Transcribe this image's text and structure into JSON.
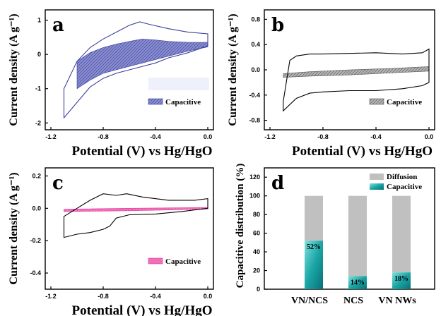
{
  "colors": {
    "capacitive_a": "#3b3f9a",
    "capacitive_a_fill": "#7c80c6",
    "capacitive_b": "#555555",
    "capacitive_b_fill": "#a6a6a6",
    "capacitive_c": "#e6339a",
    "diffusion": "#c0c0c0",
    "capacitive_d": "#1aa6a6"
  },
  "chart_data": [
    {
      "panel": "a",
      "type": "line",
      "xlabel": "Potential (V) vs Hg/HgO",
      "ylabel": "Current density (A g⁻¹)",
      "xlim": [
        -1.2,
        0.0
      ],
      "ylim": [
        -2.2,
        1.3
      ],
      "x_ticks": [
        -1.2,
        -0.8,
        -0.4,
        0.0
      ],
      "x_tick_labels": [
        "-1.2",
        "-0.8",
        "-0.4",
        "0.0"
      ],
      "y_ticks": [
        -2,
        -1,
        0,
        1
      ],
      "y_tick_labels": [
        "-2",
        "-1",
        "0",
        "1"
      ],
      "legend": [
        "Capacitive"
      ],
      "series": [
        {
          "role": "total",
          "upper": [
            [
              -1.1,
              -1.0
            ],
            [
              -1.0,
              -0.2
            ],
            [
              -0.9,
              0.2
            ],
            [
              -0.8,
              0.45
            ],
            [
              -0.7,
              0.65
            ],
            [
              -0.6,
              0.85
            ],
            [
              -0.52,
              0.95
            ],
            [
              -0.45,
              0.88
            ],
            [
              -0.3,
              0.75
            ],
            [
              -0.15,
              0.65
            ],
            [
              0.0,
              0.6
            ]
          ],
          "lower": [
            [
              -1.1,
              -1.85
            ],
            [
              -1.0,
              -1.4
            ],
            [
              -0.9,
              -0.95
            ],
            [
              -0.8,
              -0.7
            ],
            [
              -0.7,
              -0.55
            ],
            [
              -0.6,
              -0.45
            ],
            [
              -0.5,
              -0.35
            ],
            [
              -0.4,
              -0.25
            ],
            [
              -0.3,
              -0.1
            ],
            [
              -0.15,
              0.05
            ],
            [
              0.0,
              0.25
            ]
          ]
        },
        {
          "name": "Capacitive",
          "upper": [
            [
              -1.0,
              -0.2
            ],
            [
              -0.9,
              0.05
            ],
            [
              -0.8,
              0.2
            ],
            [
              -0.7,
              0.3
            ],
            [
              -0.6,
              0.38
            ],
            [
              -0.5,
              0.45
            ],
            [
              -0.4,
              0.42
            ],
            [
              -0.3,
              0.38
            ],
            [
              -0.15,
              0.35
            ],
            [
              0.0,
              0.35
            ]
          ],
          "lower": [
            [
              -1.0,
              -1.0
            ],
            [
              -0.9,
              -0.75
            ],
            [
              -0.8,
              -0.55
            ],
            [
              -0.7,
              -0.45
            ],
            [
              -0.6,
              -0.35
            ],
            [
              -0.5,
              -0.25
            ],
            [
              -0.4,
              -0.15
            ],
            [
              -0.3,
              -0.05
            ],
            [
              -0.15,
              0.1
            ],
            [
              0.0,
              0.22
            ]
          ]
        }
      ]
    },
    {
      "panel": "b",
      "type": "line",
      "xlabel": "Potential (V) vs Hg/HgO",
      "ylabel": "Current density (A g⁻¹)",
      "xlim": [
        -1.2,
        0.0
      ],
      "ylim": [
        -0.95,
        0.95
      ],
      "x_ticks": [
        -1.2,
        -0.8,
        -0.4,
        0.0
      ],
      "x_tick_labels": [
        "-1.2",
        "-0.8",
        "-0.4",
        "0.0"
      ],
      "y_ticks": [
        -0.8,
        -0.4,
        0.0,
        0.4,
        0.8
      ],
      "y_tick_labels": [
        "-0.8",
        "-0.4",
        "0.0",
        "0.4",
        "0.8"
      ],
      "legend": [
        "Capacitive"
      ],
      "series": [
        {
          "role": "total",
          "upper": [
            [
              -1.1,
              -0.5
            ],
            [
              -1.05,
              0.15
            ],
            [
              -1.0,
              0.22
            ],
            [
              -0.9,
              0.25
            ],
            [
              -0.8,
              0.25
            ],
            [
              -0.6,
              0.26
            ],
            [
              -0.4,
              0.27
            ],
            [
              -0.2,
              0.25
            ],
            [
              -0.05,
              0.27
            ],
            [
              0.0,
              0.33
            ]
          ],
          "lower": [
            [
              -1.1,
              -0.65
            ],
            [
              -1.05,
              -0.55
            ],
            [
              -1.0,
              -0.45
            ],
            [
              -0.9,
              -0.37
            ],
            [
              -0.8,
              -0.35
            ],
            [
              -0.6,
              -0.33
            ],
            [
              -0.4,
              -0.33
            ],
            [
              -0.2,
              -0.3
            ],
            [
              -0.05,
              -0.25
            ],
            [
              0.0,
              -0.2
            ]
          ]
        },
        {
          "name": "Capacitive",
          "upper": [
            [
              -1.1,
              -0.06
            ],
            [
              -0.9,
              -0.03
            ],
            [
              -0.6,
              0.0
            ],
            [
              -0.3,
              0.02
            ],
            [
              0.0,
              0.05
            ]
          ],
          "lower": [
            [
              -1.1,
              -0.12
            ],
            [
              -0.9,
              -0.1
            ],
            [
              -0.6,
              -0.08
            ],
            [
              -0.3,
              -0.05
            ],
            [
              0.0,
              -0.02
            ]
          ]
        }
      ]
    },
    {
      "panel": "c",
      "type": "line",
      "xlabel": "Potential (V) vs Hg/HgO",
      "ylabel": "Current density (A g⁻¹)",
      "xlim": [
        -1.2,
        0.0
      ],
      "ylim": [
        -0.5,
        0.25
      ],
      "x_ticks": [
        -1.2,
        -0.8,
        -0.4,
        0.0
      ],
      "x_tick_labels": [
        "-1.2",
        "-0.8",
        "-0.4",
        "0.0"
      ],
      "y_ticks": [
        -0.4,
        -0.2,
        0.0,
        0.2
      ],
      "y_tick_labels": [
        "-0.4",
        "-0.2",
        "0.0",
        "0.2"
      ],
      "legend": [
        "Capacitive"
      ],
      "series": [
        {
          "role": "total",
          "upper": [
            [
              -1.1,
              -0.05
            ],
            [
              -1.0,
              0.0
            ],
            [
              -0.9,
              0.05
            ],
            [
              -0.8,
              0.09
            ],
            [
              -0.7,
              0.08
            ],
            [
              -0.62,
              0.09
            ],
            [
              -0.5,
              0.07
            ],
            [
              -0.3,
              0.05
            ],
            [
              -0.1,
              0.05
            ],
            [
              0.0,
              0.06
            ]
          ],
          "lower": [
            [
              -1.1,
              -0.18
            ],
            [
              -1.0,
              -0.16
            ],
            [
              -0.9,
              -0.15
            ],
            [
              -0.8,
              -0.13
            ],
            [
              -0.75,
              -0.11
            ],
            [
              -0.7,
              -0.06
            ],
            [
              -0.6,
              -0.04
            ],
            [
              -0.4,
              -0.035
            ],
            [
              -0.2,
              -0.02
            ],
            [
              0.0,
              0.0
            ]
          ]
        },
        {
          "name": "Capacitive",
          "upper": [
            [
              -1.1,
              -0.005
            ],
            [
              -0.6,
              0.0
            ],
            [
              0.0,
              0.005
            ]
          ],
          "lower": [
            [
              -1.1,
              -0.02
            ],
            [
              -0.6,
              -0.015
            ],
            [
              0.0,
              -0.005
            ]
          ]
        }
      ]
    },
    {
      "panel": "d",
      "type": "bar",
      "ylabel": "Capacitive distribution (%)",
      "ylim": [
        0,
        130
      ],
      "y_ticks": [
        0,
        20,
        40,
        60,
        80,
        100,
        120
      ],
      "y_tick_labels": [
        "0",
        "20",
        "40",
        "60",
        "80",
        "100",
        "120"
      ],
      "categories": [
        "VN/NCS",
        "NCS",
        "VN NWs"
      ],
      "legend": [
        "Diffusion",
        "Capacitive"
      ],
      "series": [
        {
          "name": "Capacitive",
          "values": [
            52,
            14,
            18
          ]
        },
        {
          "name": "Diffusion",
          "values": [
            48,
            86,
            82
          ]
        }
      ],
      "value_labels": [
        "52%",
        "14%",
        "18%"
      ]
    }
  ]
}
